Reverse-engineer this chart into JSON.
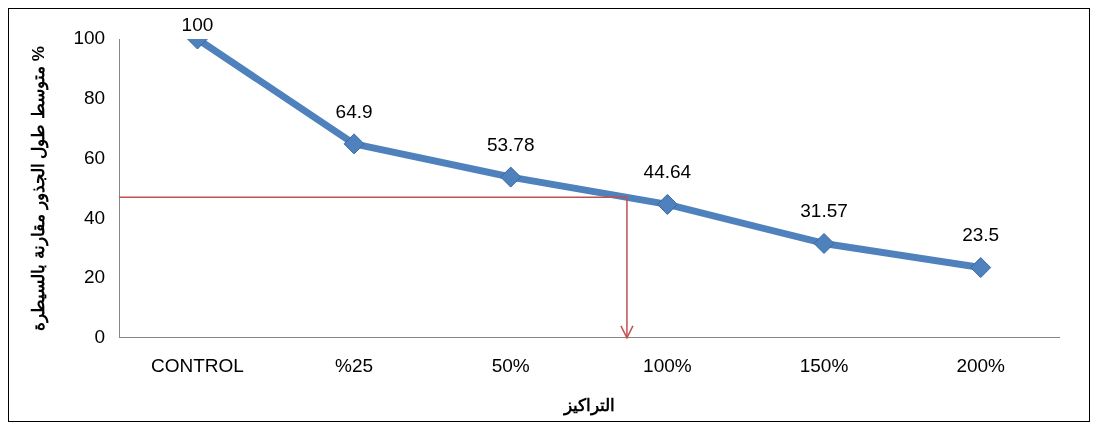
{
  "chart_data": {
    "type": "line",
    "xlabel": "التراكيز",
    "ylabel": "متوسط طول الجذور مقارنة بالسيطرة %",
    "categories": [
      "CONTROL",
      "%25",
      "50%",
      "100%",
      "150%",
      "200%"
    ],
    "series": [
      {
        "color": "#4f81bd",
        "values": [
          100,
          64.9,
          53.78,
          44.64,
          31.57,
          23.5
        ]
      }
    ],
    "ylim": [
      0,
      100
    ],
    "yticks": [
      0,
      20,
      40,
      60,
      80,
      100
    ],
    "grid": false,
    "legend": false,
    "marker": "diamond",
    "line_style": "solid",
    "data_labels": true,
    "ref_lines": [
      {
        "axis": "y",
        "value": 47,
        "color": "#c0504d"
      }
    ]
  }
}
